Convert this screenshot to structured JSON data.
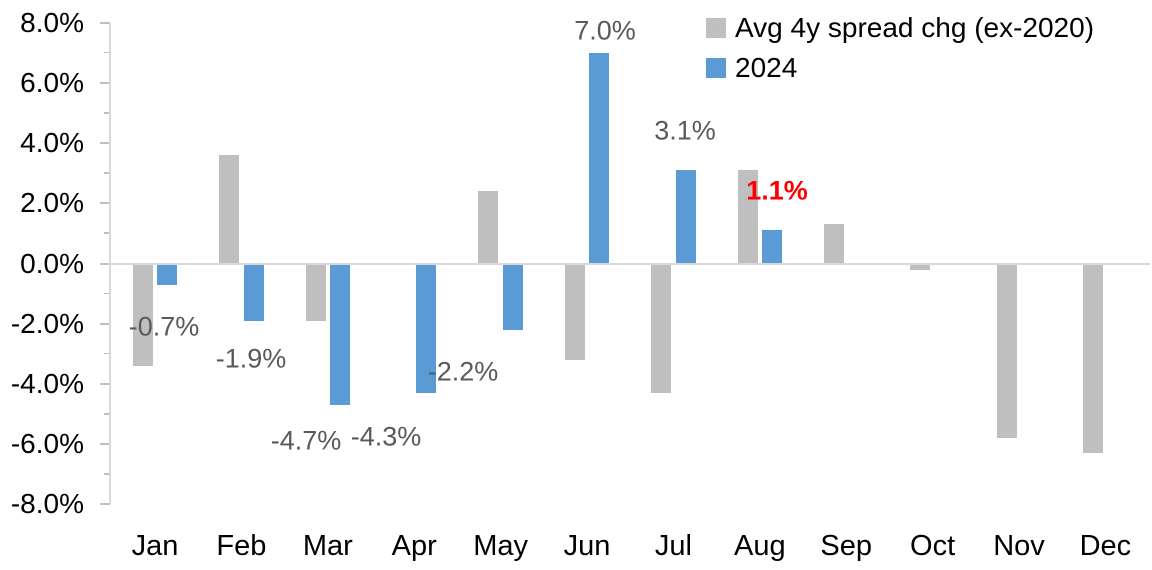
{
  "chart_data": {
    "type": "bar",
    "title": "",
    "xlabel": "",
    "ylabel": "",
    "categories": [
      "Jan",
      "Feb",
      "Mar",
      "Apr",
      "May",
      "Jun",
      "Jul",
      "Aug",
      "Sep",
      "Oct",
      "Nov",
      "Dec"
    ],
    "series": [
      {
        "name": "Avg 4y spread chg (ex-2020)",
        "color": "#bfbfbf",
        "values": [
          -3.4,
          3.6,
          -1.9,
          0.0,
          2.4,
          -3.2,
          -4.3,
          3.1,
          1.3,
          -0.2,
          -5.8,
          -6.3
        ]
      },
      {
        "name": "2024",
        "color": "#5b9bd5",
        "values": [
          -0.7,
          -1.9,
          -4.7,
          -4.3,
          -2.2,
          7.0,
          3.1,
          1.1,
          null,
          null,
          null,
          null
        ],
        "data_labels": [
          {
            "month": "Jan",
            "text": "-0.7%",
            "color": "#595959",
            "bold": false
          },
          {
            "month": "Feb",
            "text": "-1.9%",
            "color": "#595959",
            "bold": false
          },
          {
            "month": "Mar",
            "text": "-4.7%",
            "color": "#595959",
            "bold": false
          },
          {
            "month": "Apr",
            "text": "-4.3%",
            "color": "#595959",
            "bold": false
          },
          {
            "month": "May",
            "text": "-2.2%",
            "color": "#595959",
            "bold": false
          },
          {
            "month": "Jun",
            "text": "7.0%",
            "color": "#595959",
            "bold": false
          },
          {
            "month": "Jul",
            "text": "3.1%",
            "color": "#595959",
            "bold": false
          },
          {
            "month": "Aug",
            "text": "1.1%",
            "color": "#ff0000",
            "bold": true
          }
        ]
      }
    ],
    "y_axis": {
      "min": -8.0,
      "max": 8.0,
      "major_step": 2.0,
      "minor_step": 1.0,
      "tick_labels": [
        "8.0%",
        "6.0%",
        "4.0%",
        "2.0%",
        "0.0%",
        "-2.0%",
        "-4.0%",
        "-6.0%",
        "-8.0%"
      ]
    },
    "legend": {
      "position": "top-right",
      "entries": [
        {
          "label": "Avg 4y spread chg (ex-2020)",
          "color": "#bfbfbf"
        },
        {
          "label": "2024",
          "color": "#5b9bd5"
        }
      ]
    },
    "grid": false,
    "colors": {
      "background": "#ffffff",
      "axis_line": "#d9d9d9",
      "tick": "#bfbfbf",
      "axis_text": "#000000",
      "data_label": "#595959",
      "highlight_label": "#ff0000"
    }
  }
}
